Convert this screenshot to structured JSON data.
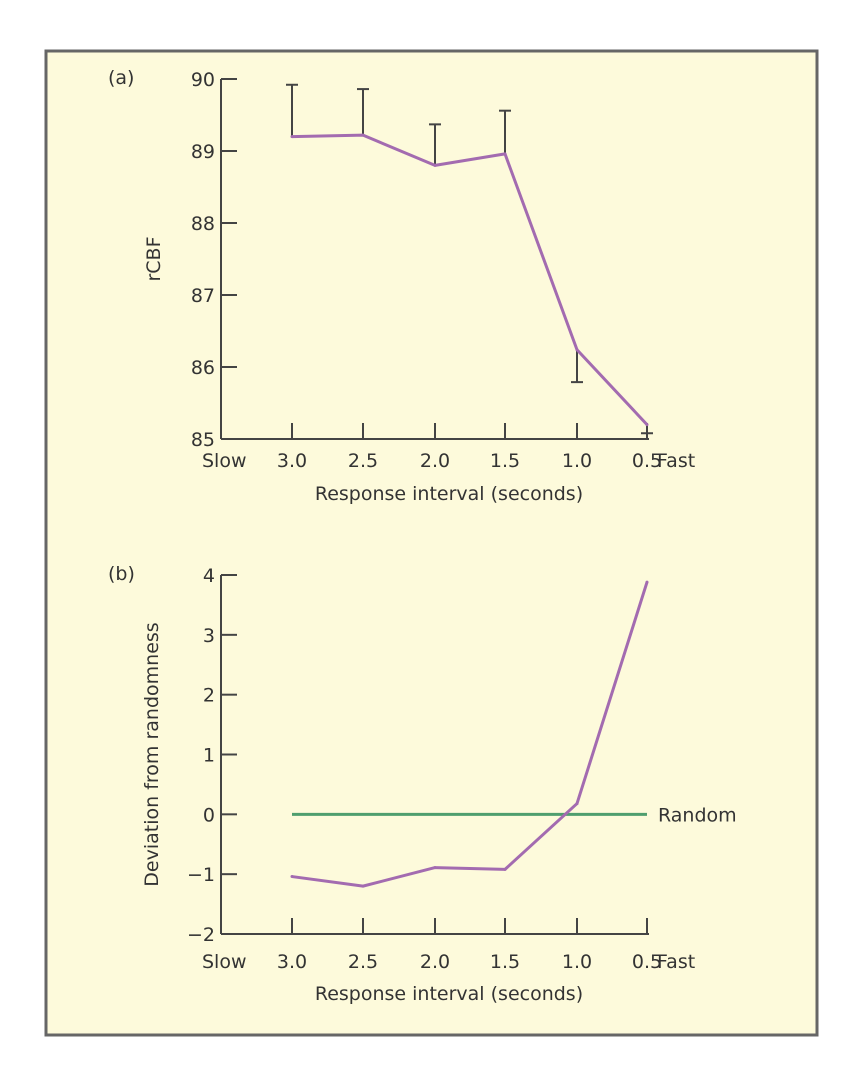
{
  "colors": {
    "background": "#fdfadb",
    "frame": "#666666",
    "axis": "#444444",
    "series": "#a36bb0",
    "random_line": "#4f9e6e"
  },
  "chart_data": [
    {
      "panel_label": "(a)",
      "type": "line",
      "xlabel": "Response interval (seconds)",
      "ylabel": "rCBF",
      "x_end_labels": {
        "left": "Slow",
        "right": "Fast"
      },
      "categories": [
        "3.0",
        "2.5",
        "2.0",
        "1.5",
        "1.0",
        "0.5"
      ],
      "ylim": [
        85,
        90
      ],
      "yticks": [
        "85",
        "86",
        "87",
        "88",
        "89",
        "90"
      ],
      "grid": false,
      "series": [
        {
          "values": [
            89.2,
            89.22,
            88.8,
            88.96,
            86.24,
            85.2
          ],
          "error_bar_ends": [
            89.92,
            89.86,
            89.37,
            89.56,
            85.79,
            85.08
          ]
        }
      ]
    },
    {
      "panel_label": "(b)",
      "type": "line",
      "xlabel": "Response interval (seconds)",
      "ylabel": "Deviation from randomness",
      "x_end_labels": {
        "left": "Slow",
        "right": "Fast"
      },
      "categories": [
        "3.0",
        "2.5",
        "2.0",
        "1.5",
        "1.0",
        "0.5"
      ],
      "ylim": [
        -2,
        4
      ],
      "yticks": [
        "−2",
        "−1",
        "0",
        "1",
        "2",
        "3",
        "4"
      ],
      "grid": false,
      "series": [
        {
          "values": [
            -1.04,
            -1.2,
            -0.89,
            -0.92,
            0.18,
            3.88
          ]
        }
      ],
      "reference_line": {
        "label": "Random",
        "value": 0
      }
    }
  ]
}
